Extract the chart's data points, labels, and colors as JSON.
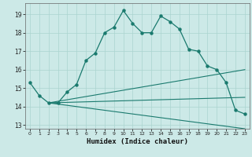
{
  "xlabel": "Humidex (Indice chaleur)",
  "bg_color": "#cce9e7",
  "line_color": "#1a7a6e",
  "grid_color": "#aad4d0",
  "xlim": [
    -0.5,
    23.5
  ],
  "ylim": [
    12.8,
    19.6
  ],
  "yticks": [
    13,
    14,
    15,
    16,
    17,
    18,
    19
  ],
  "xticks": [
    0,
    1,
    2,
    3,
    4,
    5,
    6,
    7,
    8,
    9,
    10,
    11,
    12,
    13,
    14,
    15,
    16,
    17,
    18,
    19,
    20,
    21,
    22,
    23
  ],
  "main_line_x": [
    0,
    1,
    2,
    3,
    4,
    5,
    6,
    7,
    8,
    9,
    10,
    11,
    12,
    13,
    14,
    15,
    16,
    17,
    18,
    19,
    20,
    21,
    22,
    23
  ],
  "main_line_y": [
    15.3,
    14.6,
    14.2,
    14.2,
    14.8,
    15.2,
    16.5,
    16.9,
    18.0,
    18.3,
    19.2,
    18.5,
    18.0,
    18.0,
    18.9,
    18.6,
    18.2,
    17.1,
    17.0,
    16.2,
    16.0,
    15.3,
    13.8,
    13.6
  ],
  "fan_lines": [
    {
      "x": [
        2,
        23
      ],
      "y": [
        14.2,
        16.0
      ]
    },
    {
      "x": [
        2,
        23
      ],
      "y": [
        14.2,
        14.5
      ]
    },
    {
      "x": [
        2,
        23
      ],
      "y": [
        14.2,
        12.8
      ]
    }
  ]
}
